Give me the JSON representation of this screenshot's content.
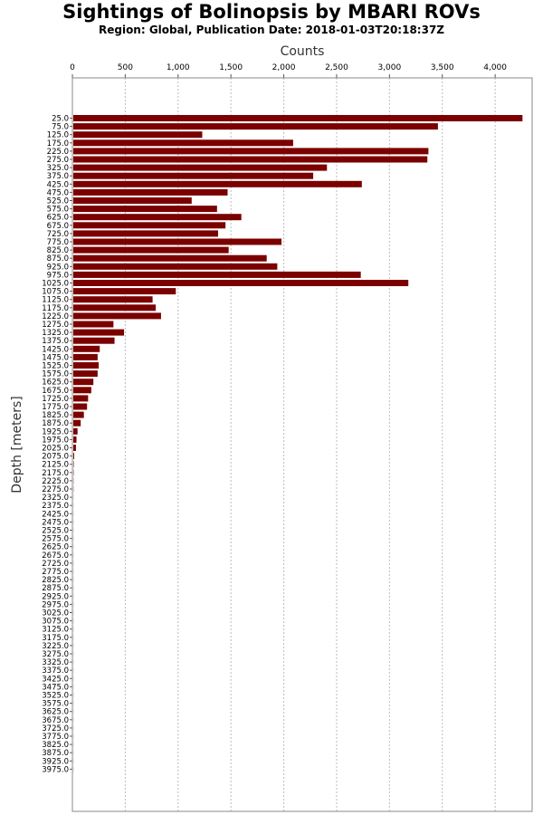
{
  "chart_data": {
    "type": "bar",
    "orientation": "horizontal",
    "title": "Sightings of Bolinopsis by MBARI ROVs",
    "subtitle": "Region: Global, Publication Date: 2018-01-03T20:18:37Z",
    "xlabel": "Counts",
    "ylabel": "Depth [meters]",
    "xlim": [
      0,
      4350
    ],
    "x_ticks": [
      "0",
      "500",
      "1,000",
      "1,500",
      "2,000",
      "2,500",
      "3,000",
      "3,500",
      "4,000"
    ],
    "x_tick_values": [
      0,
      500,
      1000,
      1500,
      2000,
      2500,
      3000,
      3500,
      4000
    ],
    "grid": true,
    "categories": [
      "25.0",
      "75.0",
      "125.0",
      "175.0",
      "225.0",
      "275.0",
      "325.0",
      "375.0",
      "425.0",
      "475.0",
      "525.0",
      "575.0",
      "625.0",
      "675.0",
      "725.0",
      "775.0",
      "825.0",
      "875.0",
      "925.0",
      "975.0",
      "1025.0",
      "1075.0",
      "1125.0",
      "1175.0",
      "1225.0",
      "1275.0",
      "1325.0",
      "1375.0",
      "1425.0",
      "1475.0",
      "1525.0",
      "1575.0",
      "1625.0",
      "1675.0",
      "1725.0",
      "1775.0",
      "1825.0",
      "1875.0",
      "1925.0",
      "1975.0",
      "2025.0",
      "2075.0",
      "2125.0",
      "2175.0",
      "2225.0",
      "2275.0",
      "2325.0",
      "2375.0",
      "2425.0",
      "2475.0",
      "2525.0",
      "2575.0",
      "2625.0",
      "2675.0",
      "2725.0",
      "2775.0",
      "2825.0",
      "2875.0",
      "2925.0",
      "2975.0",
      "3025.0",
      "3075.0",
      "3125.0",
      "3175.0",
      "3225.0",
      "3275.0",
      "3325.0",
      "3375.0",
      "3425.0",
      "3475.0",
      "3525.0",
      "3575.0",
      "3625.0",
      "3675.0",
      "3725.0",
      "3775.0",
      "3825.0",
      "3875.0",
      "3925.0",
      "3975.0"
    ],
    "values": [
      4250,
      3450,
      1220,
      2080,
      3360,
      3350,
      2400,
      2270,
      2730,
      1460,
      1120,
      1360,
      1590,
      1440,
      1370,
      1970,
      1470,
      1830,
      1930,
      2720,
      3170,
      970,
      750,
      780,
      830,
      380,
      480,
      390,
      250,
      230,
      240,
      230,
      190,
      170,
      140,
      130,
      100,
      70,
      40,
      30,
      25,
      8,
      4,
      3,
      2,
      2,
      1,
      1,
      1,
      1,
      1,
      1,
      1,
      1,
      1,
      1,
      1,
      1,
      1,
      1,
      1,
      1,
      1,
      1,
      1,
      1,
      1,
      1,
      1,
      1,
      1,
      1,
      1,
      1,
      1,
      1,
      1,
      1,
      1,
      1
    ],
    "colors": {
      "bar": "#7b0000",
      "grid": "#bbbbbb"
    }
  }
}
